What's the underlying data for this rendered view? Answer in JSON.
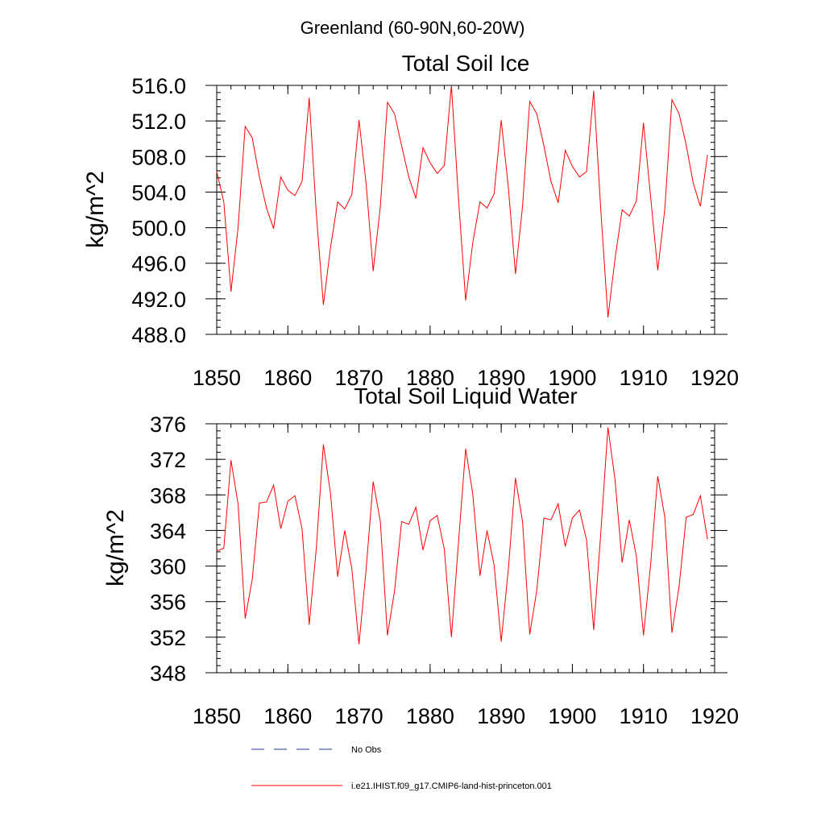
{
  "figure": {
    "suptitle": "Greenland (60-90N,60-20W)"
  },
  "chart_data": [
    {
      "type": "line",
      "title": "Total Soil Ice",
      "xlabel": "",
      "ylabel": "kg/m^2",
      "xlim": [
        1850,
        1920
      ],
      "ylim": [
        488,
        516
      ],
      "xticks": [
        1850,
        1860,
        1870,
        1880,
        1890,
        1900,
        1910,
        1920
      ],
      "xtick_labels": [
        "1850",
        "1860",
        "1870",
        "1880",
        "1890",
        "1900",
        "1910",
        "1920"
      ],
      "yticks": [
        488,
        492,
        496,
        500,
        504,
        508,
        512,
        516
      ],
      "ytick_labels": [
        "488.0",
        "492.0",
        "496.0",
        "500.0",
        "504.0",
        "508.0",
        "512.0",
        "516.0"
      ],
      "grid": false,
      "series": [
        {
          "name": "i.e21.IHIST.f09_g17.CMIP6-land-hist-princeton.001",
          "color": "#ff0000",
          "x": [
            1850,
            1851,
            1852,
            1853,
            1854,
            1855,
            1856,
            1857,
            1858,
            1859,
            1860,
            1861,
            1862,
            1863,
            1864,
            1865,
            1866,
            1867,
            1868,
            1869,
            1870,
            1871,
            1872,
            1873,
            1874,
            1875,
            1876,
            1877,
            1878,
            1879,
            1880,
            1881,
            1882,
            1883,
            1884,
            1885,
            1886,
            1887,
            1888,
            1889,
            1890,
            1891,
            1892,
            1893,
            1894,
            1895,
            1896,
            1897,
            1898,
            1899,
            1900,
            1901,
            1902,
            1903,
            1904,
            1905,
            1906,
            1907,
            1908,
            1909,
            1910,
            1911,
            1912,
            1913,
            1914,
            1915,
            1916,
            1917,
            1918,
            1919
          ],
          "y": [
            506.3,
            502.9,
            492.8,
            500.0,
            511.4,
            510.1,
            505.7,
            502.2,
            499.9,
            505.7,
            504.2,
            503.6,
            505.2,
            514.6,
            501.6,
            491.3,
            497.8,
            502.9,
            502.1,
            503.7,
            512.1,
            505.0,
            495.1,
            502.4,
            514.1,
            512.8,
            509.2,
            505.7,
            503.3,
            509.0,
            507.3,
            506.1,
            507.0,
            516.0,
            503.1,
            491.8,
            498.3,
            502.9,
            502.2,
            503.8,
            512.1,
            504.5,
            494.8,
            502.4,
            514.2,
            512.8,
            509.2,
            505.2,
            502.8,
            508.7,
            506.9,
            505.7,
            506.3,
            515.4,
            502.0,
            489.9,
            496.5,
            502.0,
            501.3,
            503.0,
            511.8,
            503.5,
            495.2,
            502.1,
            514.4,
            512.8,
            509.3,
            505.0,
            502.4,
            508.2
          ]
        }
      ]
    },
    {
      "type": "line",
      "title": "Total Soil Liquid Water",
      "xlabel": "",
      "ylabel": "kg/m^2",
      "xlim": [
        1850,
        1920
      ],
      "ylim": [
        348,
        376
      ],
      "xticks": [
        1850,
        1860,
        1870,
        1880,
        1890,
        1900,
        1910,
        1920
      ],
      "xtick_labels": [
        "1850",
        "1860",
        "1870",
        "1880",
        "1890",
        "1900",
        "1910",
        "1920"
      ],
      "yticks": [
        348,
        352,
        356,
        360,
        364,
        368,
        372,
        376
      ],
      "ytick_labels": [
        "348",
        "352",
        "356",
        "360",
        "364",
        "368",
        "372",
        "376"
      ],
      "grid": false,
      "series": [
        {
          "name": "i.e21.IHIST.f09_g17.CMIP6-land-hist-princeton.001",
          "color": "#ff0000",
          "x": [
            1850,
            1851,
            1852,
            1853,
            1854,
            1855,
            1856,
            1857,
            1858,
            1859,
            1860,
            1861,
            1862,
            1863,
            1864,
            1865,
            1866,
            1867,
            1868,
            1869,
            1870,
            1871,
            1872,
            1873,
            1874,
            1875,
            1876,
            1877,
            1878,
            1879,
            1880,
            1881,
            1882,
            1883,
            1884,
            1885,
            1886,
            1887,
            1888,
            1889,
            1890,
            1891,
            1892,
            1893,
            1894,
            1895,
            1896,
            1897,
            1898,
            1899,
            1900,
            1901,
            1902,
            1903,
            1904,
            1905,
            1906,
            1907,
            1908,
            1909,
            1910,
            1911,
            1912,
            1913,
            1914,
            1915,
            1916,
            1917,
            1918,
            1919
          ],
          "y": [
            361.7,
            362.0,
            371.9,
            367.0,
            354.1,
            358.5,
            367.1,
            367.2,
            369.1,
            364.2,
            367.3,
            367.9,
            364.2,
            353.4,
            362.0,
            373.7,
            368.1,
            358.8,
            364.0,
            359.7,
            351.2,
            359.6,
            369.5,
            365.0,
            352.2,
            357.2,
            365.0,
            364.7,
            366.6,
            361.8,
            365.1,
            365.7,
            361.9,
            352.0,
            362.8,
            373.2,
            368.1,
            358.9,
            364.0,
            360.1,
            351.5,
            359.7,
            369.9,
            365.0,
            352.3,
            357.3,
            365.4,
            365.2,
            367.0,
            362.2,
            365.4,
            366.3,
            362.9,
            352.8,
            363.7,
            375.6,
            369.7,
            360.4,
            365.2,
            361.1,
            352.2,
            360.1,
            370.1,
            365.5,
            352.5,
            357.7,
            365.5,
            365.8,
            367.9,
            363.0
          ]
        }
      ]
    }
  ],
  "legend": {
    "placement": "bottom",
    "items": [
      {
        "label": "No Obs",
        "color": "#1f3f8f",
        "style": "dashed"
      },
      {
        "label": "i.e21.IHIST.f09_g17.CMIP6-land-hist-princeton.001",
        "color": "#ff0000",
        "style": "solid"
      }
    ]
  }
}
